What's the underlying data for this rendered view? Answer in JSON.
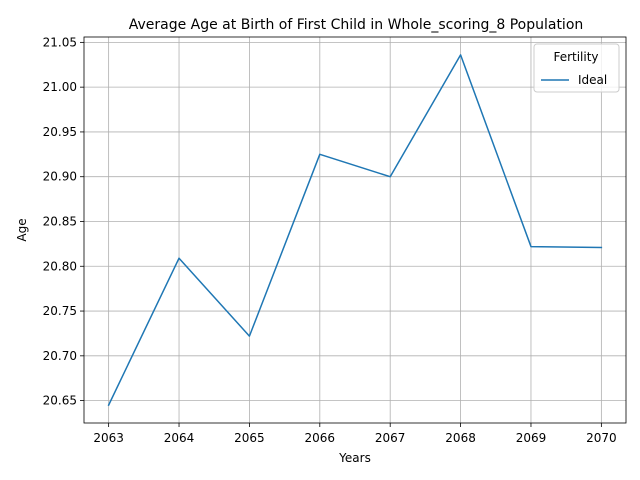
{
  "chart_data": {
    "type": "line",
    "title": "Average Age at Birth of First Child in Whole_scoring_8 Population",
    "xlabel": "Years",
    "ylabel": "Age",
    "x": [
      2063,
      2064,
      2065,
      2066,
      2067,
      2068,
      2069,
      2070
    ],
    "series": [
      {
        "name": "Ideal",
        "color": "#1f77b4",
        "values": [
          20.645,
          20.809,
          20.722,
          20.925,
          20.9,
          21.036,
          20.822,
          20.821
        ]
      }
    ],
    "xlim": [
      2062.65,
      2070.35
    ],
    "ylim": [
      20.625,
      21.056
    ],
    "xticks": [
      "2063",
      "2064",
      "2065",
      "2066",
      "2067",
      "2068",
      "2069",
      "2070"
    ],
    "yticks": [
      "20.65",
      "20.70",
      "20.75",
      "20.80",
      "20.85",
      "20.90",
      "20.95",
      "21.00",
      "21.05"
    ],
    "grid": true,
    "legend": {
      "title": "Fertility",
      "placement": "top-right"
    }
  }
}
